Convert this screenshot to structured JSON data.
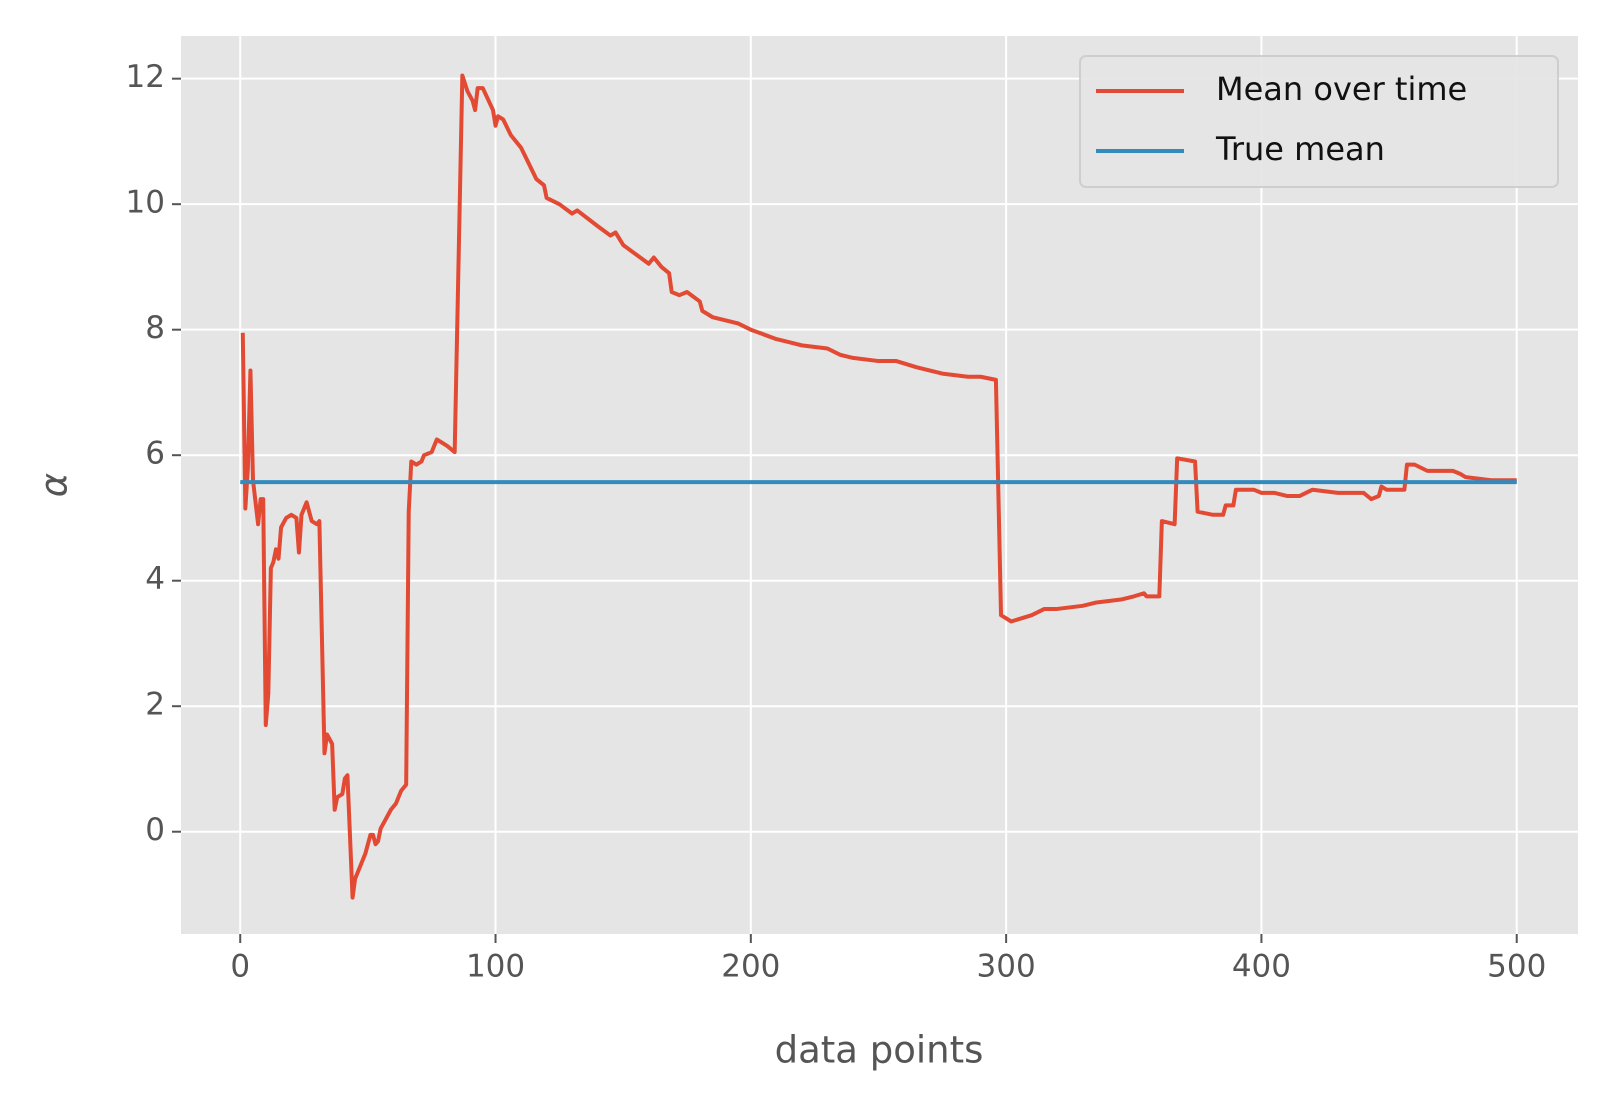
{
  "chart_data": {
    "type": "line",
    "x_label": "data points",
    "y_label": "α",
    "xlim": [
      -23.2,
      524
    ],
    "ylim": [
      -1.63,
      12.68
    ],
    "xticks": [
      0,
      100,
      200,
      300,
      400,
      500
    ],
    "yticks": [
      0,
      2,
      4,
      6,
      8,
      10,
      12
    ],
    "grid": true,
    "legend": "upper right",
    "series": [
      {
        "name": "Mean over time",
        "color": "#e24a33",
        "x": [
          1,
          2,
          3,
          4,
          5,
          7,
          8,
          9,
          10,
          11,
          12,
          13,
          14,
          15,
          16,
          18,
          20,
          22,
          23,
          24,
          26,
          28,
          30,
          31,
          33,
          34,
          36,
          37,
          38,
          40,
          41,
          42,
          44,
          45,
          47,
          49,
          51,
          52,
          53,
          54,
          55,
          57,
          59,
          61,
          63,
          65,
          66,
          67,
          69,
          71,
          72,
          75,
          77,
          79,
          81,
          84,
          87,
          89,
          91,
          92,
          93,
          95,
          99,
          100,
          101,
          103,
          106,
          110,
          113,
          116,
          119,
          120,
          125,
          130,
          132,
          140,
          145,
          147,
          150,
          155,
          160,
          162,
          165,
          168,
          169,
          172,
          175,
          180,
          181,
          185,
          195,
          200,
          210,
          215,
          220,
          230,
          235,
          240,
          250,
          257,
          265,
          275,
          285,
          290,
          296,
          298,
          300,
          302,
          310,
          315,
          320,
          330,
          335,
          345,
          350,
          354,
          355,
          360,
          361,
          366,
          367,
          374,
          375,
          381,
          385,
          386,
          389,
          390,
          397,
          400,
          405,
          410,
          415,
          420,
          430,
          440,
          443,
          446,
          447,
          449,
          456,
          457,
          460,
          465,
          472,
          475,
          478,
          480,
          490,
          500
        ],
        "values": [
          7.95,
          5.15,
          5.8,
          7.35,
          5.6,
          4.9,
          5.3,
          5.3,
          1.7,
          2.2,
          4.2,
          4.3,
          4.5,
          4.35,
          4.85,
          5.0,
          5.05,
          5.0,
          4.45,
          5.05,
          5.25,
          4.95,
          4.9,
          4.95,
          1.25,
          1.55,
          1.4,
          0.35,
          0.55,
          0.6,
          0.85,
          0.9,
          -1.05,
          -0.75,
          -0.55,
          -0.35,
          -0.05,
          -0.05,
          -0.2,
          -0.15,
          0.05,
          0.2,
          0.35,
          0.45,
          0.65,
          0.75,
          5.1,
          5.9,
          5.85,
          5.9,
          6.0,
          6.05,
          6.25,
          6.2,
          6.15,
          6.05,
          12.05,
          11.8,
          11.65,
          11.5,
          11.85,
          11.85,
          11.5,
          11.25,
          11.4,
          11.35,
          11.1,
          10.9,
          10.65,
          10.4,
          10.3,
          10.1,
          10.0,
          9.85,
          9.9,
          9.65,
          9.5,
          9.55,
          9.35,
          9.2,
          9.05,
          9.15,
          9.0,
          8.9,
          8.6,
          8.55,
          8.6,
          8.45,
          8.3,
          8.2,
          8.1,
          8.0,
          7.85,
          7.8,
          7.75,
          7.7,
          7.6,
          7.55,
          7.5,
          7.5,
          7.4,
          7.3,
          7.25,
          7.25,
          7.2,
          3.45,
          3.4,
          3.35,
          3.45,
          3.55,
          3.55,
          3.6,
          3.65,
          3.7,
          3.75,
          3.8,
          3.75,
          3.75,
          4.95,
          4.9,
          5.95,
          5.9,
          5.1,
          5.05,
          5.05,
          5.2,
          5.2,
          5.45,
          5.45,
          5.4,
          5.4,
          5.35,
          5.35,
          5.45,
          5.4,
          5.4,
          5.3,
          5.35,
          5.5,
          5.45,
          5.45,
          5.85,
          5.85,
          5.75,
          5.75,
          5.75,
          5.7,
          5.65,
          5.6,
          5.6
        ]
      },
      {
        "name": "True mean",
        "color": "#348abd",
        "x": [
          0,
          500
        ],
        "values": [
          5.57,
          5.57
        ]
      }
    ]
  }
}
